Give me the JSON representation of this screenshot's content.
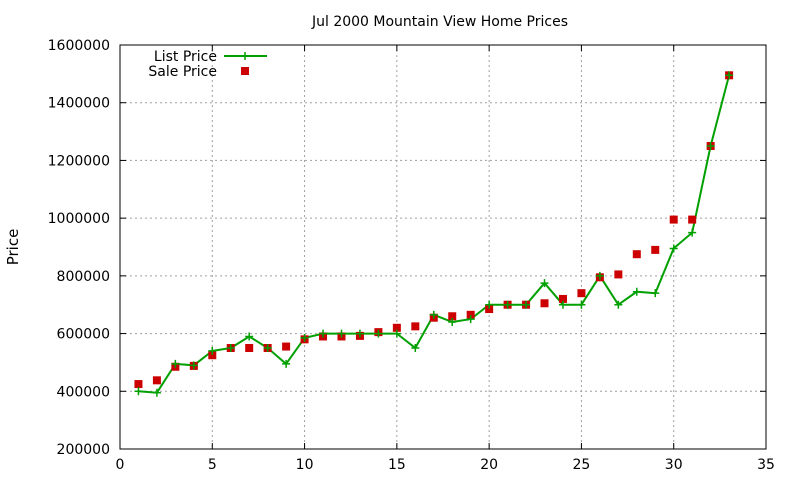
{
  "chart_data": {
    "type": "line",
    "title": "Jul 2000 Mountain View Home Prices",
    "xlabel": "",
    "ylabel": "Price",
    "xlim": [
      0,
      35
    ],
    "ylim": [
      200000,
      1600000
    ],
    "x_ticks": [
      0,
      5,
      10,
      15,
      20,
      25,
      30,
      35
    ],
    "y_ticks": [
      200000,
      400000,
      600000,
      800000,
      1000000,
      1200000,
      1400000,
      1600000
    ],
    "grid": true,
    "legend_position": "top-left",
    "series": [
      {
        "name": "List Price",
        "style": "linespoints",
        "color": "#00a000",
        "marker": "plus",
        "x": [
          1,
          2,
          3,
          4,
          5,
          6,
          7,
          8,
          9,
          10,
          11,
          12,
          13,
          14,
          15,
          16,
          17,
          18,
          19,
          20,
          21,
          22,
          23,
          24,
          25,
          26,
          27,
          28,
          29,
          30,
          31,
          32,
          33
        ],
        "y": [
          400000,
          395000,
          495000,
          490000,
          540000,
          550000,
          590000,
          550000,
          495000,
          585000,
          600000,
          600000,
          600000,
          600000,
          600000,
          550000,
          665000,
          640000,
          650000,
          700000,
          700000,
          700000,
          775000,
          700000,
          700000,
          800000,
          700000,
          745000,
          740000,
          895000,
          950000,
          1250000,
          1495000
        ]
      },
      {
        "name": "Sale Price",
        "style": "points",
        "color": "#cc0000",
        "marker": "square",
        "x": [
          1,
          2,
          3,
          4,
          5,
          6,
          7,
          8,
          9,
          10,
          11,
          12,
          13,
          14,
          15,
          16,
          17,
          18,
          19,
          20,
          21,
          22,
          23,
          24,
          25,
          26,
          27,
          28,
          29,
          30,
          31,
          32,
          33
        ],
        "y": [
          425000,
          438000,
          485000,
          488000,
          525000,
          550000,
          550000,
          550000,
          555000,
          580000,
          590000,
          590000,
          592000,
          605000,
          620000,
          625000,
          655000,
          660000,
          665000,
          685000,
          700000,
          700000,
          705000,
          720000,
          740000,
          795000,
          805000,
          875000,
          890000,
          995000,
          995000,
          1250000,
          1495000
        ]
      }
    ]
  }
}
